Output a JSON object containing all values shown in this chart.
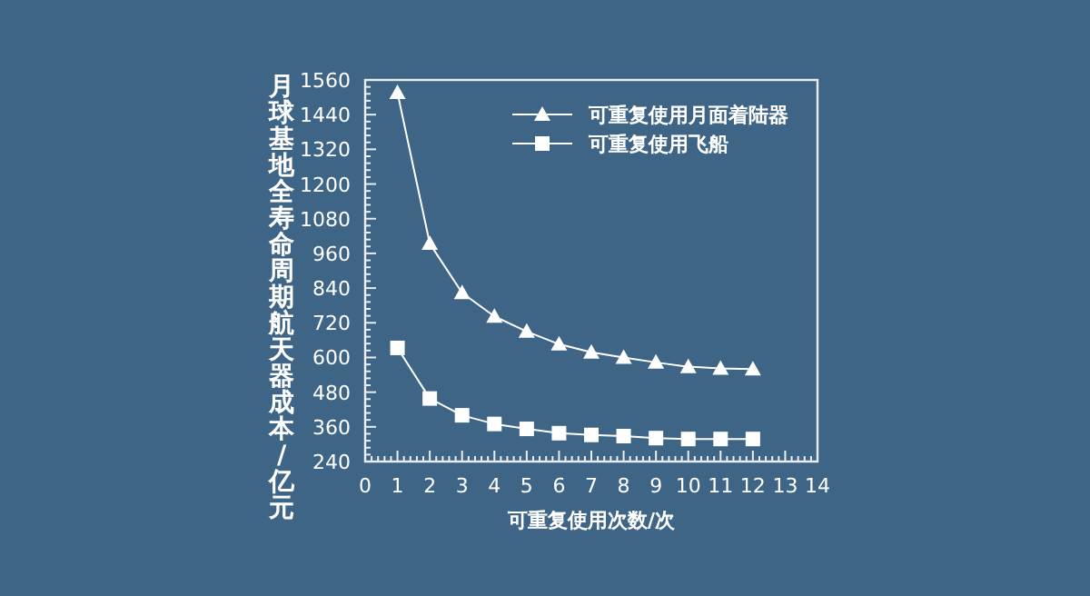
{
  "chart_data": {
    "type": "line",
    "xlabel": "可重复使用次数/次",
    "ylabel": "月球基地全寿命周期航天器成本/亿元",
    "x": [
      1,
      2,
      3,
      4,
      5,
      6,
      7,
      8,
      9,
      10,
      11,
      12
    ],
    "series": [
      {
        "name": "可重复使用月面着陆器",
        "color": "#ffffff",
        "marker": "triangle",
        "values": [
          1516,
          994,
          824,
          742,
          690,
          646,
          618,
          600,
          583,
          568,
          562,
          560
        ]
      },
      {
        "name": "可重复使用飞船",
        "color": "#ffffff",
        "marker": "square",
        "values": [
          633,
          458,
          400,
          370,
          353,
          338,
          332,
          328,
          321,
          318,
          318,
          318
        ]
      }
    ],
    "xlim": [
      0,
      14
    ],
    "xticks": [
      0,
      1,
      2,
      3,
      4,
      5,
      6,
      7,
      8,
      9,
      10,
      11,
      12,
      13,
      14
    ],
    "ylim": [
      240,
      1560
    ],
    "yticks": [
      240,
      360,
      480,
      600,
      720,
      840,
      960,
      1080,
      1200,
      1320,
      1440,
      1560
    ],
    "grid": false,
    "legend": "top",
    "line_style": "solid"
  }
}
